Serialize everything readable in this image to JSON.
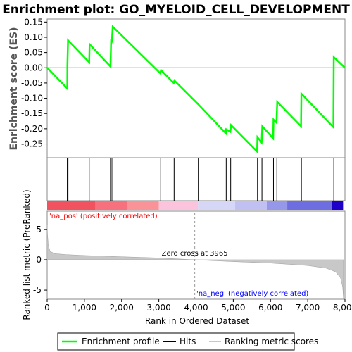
{
  "chart_data": {
    "type": "line",
    "title": "Enrichment plot: GO_MYELOID_CELL_DEVELOPMENT",
    "es_panel": {
      "ylabel": "Enrichment score (ES)",
      "yticks": [
        0.15,
        0.1,
        0.05,
        0.0,
        -0.05,
        -0.1,
        -0.15,
        -0.2,
        -0.25
      ],
      "ylim": [
        -0.295,
        0.16
      ],
      "series": [
        {
          "name": "Enrichment profile",
          "color": "#00ff00",
          "points": [
            [
              0,
              0.0
            ],
            [
              540,
              -0.068
            ],
            [
              545,
              0.01
            ],
            [
              560,
              0.09
            ],
            [
              1130,
              0.018
            ],
            [
              1140,
              0.077
            ],
            [
              1700,
              0.004
            ],
            [
              1710,
              0.05
            ],
            [
              1720,
              0.095
            ],
            [
              1740,
              0.09
            ],
            [
              1760,
              0.135
            ],
            [
              3040,
              -0.018
            ],
            [
              3060,
              -0.008
            ],
            [
              3400,
              -0.05
            ],
            [
              3420,
              -0.042
            ],
            [
              4060,
              -0.12
            ],
            [
              4800,
              -0.215
            ],
            [
              4810,
              -0.202
            ],
            [
              4920,
              -0.21
            ],
            [
              4940,
              -0.188
            ],
            [
              5640,
              -0.275
            ],
            [
              5650,
              -0.228
            ],
            [
              5760,
              -0.245
            ],
            [
              5780,
              -0.192
            ],
            [
              6070,
              -0.232
            ],
            [
              6080,
              -0.17
            ],
            [
              6160,
              -0.18
            ],
            [
              6180,
              -0.112
            ],
            [
              6820,
              -0.192
            ],
            [
              6830,
              -0.085
            ],
            [
              7690,
              -0.195
            ],
            [
              7700,
              0.035
            ],
            [
              8000,
              0.0
            ]
          ]
        }
      ]
    },
    "hits": [
      540,
      560,
      1130,
      1700,
      1720,
      1760,
      3050,
      3410,
      4060,
      4810,
      4930,
      5650,
      5770,
      6080,
      6170,
      6830,
      7700
    ],
    "hits_series_name": "Hits",
    "heat_bar_segments": [
      {
        "from": 0,
        "to": 1300,
        "color": "#f0525f"
      },
      {
        "from": 1300,
        "to": 2150,
        "color": "#f6707d"
      },
      {
        "from": 2150,
        "to": 3000,
        "color": "#f99397"
      },
      {
        "from": 3000,
        "to": 4050,
        "color": "#fbc3dc"
      },
      {
        "from": 4050,
        "to": 5050,
        "color": "#d6d6f6"
      },
      {
        "from": 5050,
        "to": 5900,
        "color": "#c0c0f2"
      },
      {
        "from": 5900,
        "to": 6450,
        "color": "#9696ea"
      },
      {
        "from": 6450,
        "to": 7650,
        "color": "#6e6ee0"
      },
      {
        "from": 7650,
        "to": 7950,
        "color": "#1e00c8"
      }
    ],
    "rank_panel": {
      "ylabel": "Ranked list metric (PreRanked)",
      "yticks": [
        5,
        0,
        -5
      ],
      "ylim": [
        -6.5,
        8
      ],
      "series_name": "Ranking metric scores",
      "profile": [
        [
          0,
          5.8
        ],
        [
          10,
          4.2
        ],
        [
          30,
          2.4
        ],
        [
          80,
          1.4
        ],
        [
          200,
          1.0
        ],
        [
          500,
          0.85
        ],
        [
          1000,
          0.7
        ],
        [
          2000,
          0.5
        ],
        [
          3000,
          0.3
        ],
        [
          3965,
          0.0
        ],
        [
          5000,
          -0.3
        ],
        [
          6000,
          -0.55
        ],
        [
          7000,
          -0.95
        ],
        [
          7500,
          -1.4
        ],
        [
          7750,
          -2.0
        ],
        [
          7880,
          -3.0
        ],
        [
          7940,
          -4.5
        ],
        [
          7960,
          -6.5
        ]
      ],
      "zero_cross_label": "Zero cross at 3965",
      "zero_cross_rank": 3965,
      "pos_label": "'na_pos' (positively correlated)",
      "neg_label": "'na_neg' (negatively correlated)"
    },
    "xlabel": "Rank in Ordered Dataset",
    "xticks": [
      0,
      1000,
      2000,
      3000,
      4000,
      5000,
      6000,
      7000,
      8000
    ],
    "xtick_labels": [
      "0",
      "1,000",
      "2,000",
      "3,000",
      "4,000",
      "5,000",
      "6,000",
      "7,000",
      "8,000"
    ],
    "xlim": [
      0,
      8000
    ],
    "legend_position": "bottom",
    "legend": [
      "Enrichment profile",
      "Hits",
      "Ranking metric scores"
    ]
  },
  "colors": {
    "profile": "#00ff00",
    "hit": "#000000",
    "rank_fill": "#c8c8c8",
    "pos_label": "#ff0000",
    "neg_label": "#0000ff",
    "zero_line": "#888888"
  }
}
